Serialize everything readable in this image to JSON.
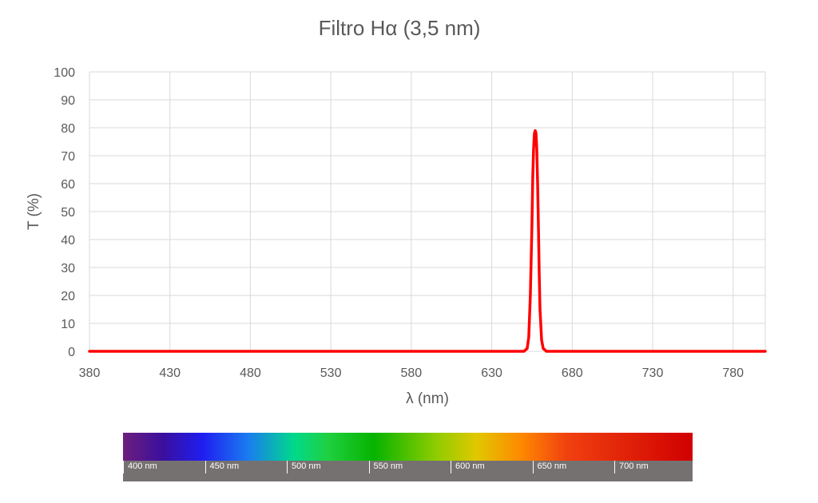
{
  "chart_data": {
    "type": "line",
    "title": "Filtro Hα (3,5 nm)",
    "xlabel": "λ (nm)",
    "ylabel": "T (%)",
    "xlim": [
      380,
      800
    ],
    "ylim": [
      0,
      100
    ],
    "xticks": [
      380,
      430,
      480,
      530,
      580,
      630,
      680,
      730,
      780
    ],
    "yticks": [
      0,
      10,
      20,
      30,
      40,
      50,
      60,
      70,
      80,
      90,
      100
    ],
    "grid": true,
    "legend": "none",
    "series": [
      {
        "color": "#ff0000",
        "x": [
          380,
          600,
          650,
          652,
          653,
          654,
          655,
          655.5,
          656,
          656.5,
          657,
          657.5,
          658,
          658.5,
          659,
          659.5,
          660,
          661,
          662,
          664,
          700,
          800
        ],
        "y": [
          0,
          0,
          0,
          1,
          5,
          20,
          45,
          62,
          72,
          78,
          79,
          78,
          72,
          60,
          45,
          28,
          15,
          4,
          1,
          0,
          0,
          0
        ]
      }
    ]
  },
  "spectrum": {
    "labels": [
      "400 nm",
      "450 nm",
      "500 nm",
      "550 nm",
      "600 nm",
      "650 nm",
      "700 nm"
    ]
  }
}
